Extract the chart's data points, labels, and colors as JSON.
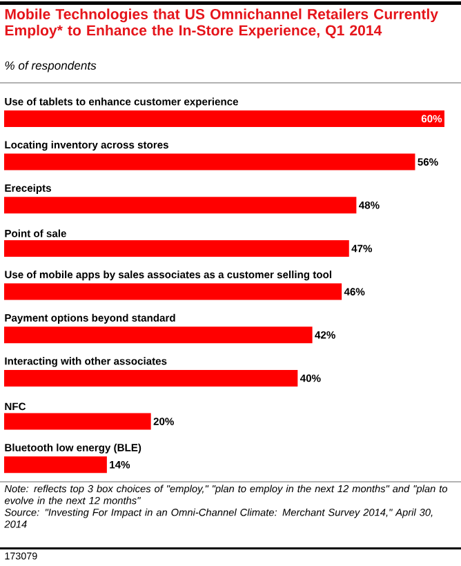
{
  "chart_data": {
    "type": "bar",
    "orientation": "horizontal",
    "title": "Mobile Technologies that US Omnichannel Retailers Currently Employ* to Enhance the In-Store Experience, Q1 2014",
    "subtitle": "% of respondents",
    "categories": [
      "Use of tablets to enhance customer experience",
      "Locating inventory across stores",
      "Ereceipts",
      "Point of sale",
      "Use of mobile apps by sales associates as a customer selling tool",
      "Payment options beyond standard",
      "Interacting with other associates",
      "NFC",
      "Bluetooth low energy (BLE)"
    ],
    "values": [
      60,
      56,
      48,
      47,
      46,
      42,
      40,
      20,
      14
    ],
    "value_labels": [
      "60%",
      "56%",
      "48%",
      "47%",
      "46%",
      "42%",
      "40%",
      "20%",
      "14%"
    ],
    "color": "#ff0000",
    "annotations": [
      "Note: reflects top 3 box choices of \"employ,\" \"plan to employ in the next 12 months\" and \"plan to evolve in the next 12 months\"",
      "Source: \"Investing For Impact in an Omni-Channel Climate: Merchant Survey 2014,\" April 30, 2014",
      "173079"
    ]
  }
}
